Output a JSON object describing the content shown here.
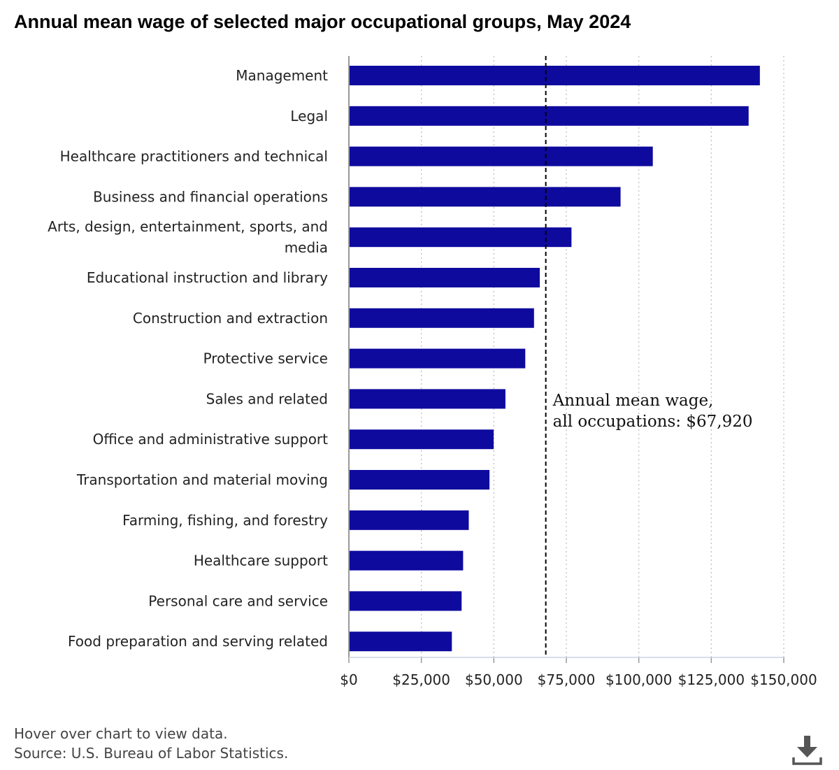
{
  "title": "Annual mean wage of selected major occupational groups, May 2024",
  "footer": {
    "hint": "Hover over chart to view data.",
    "source": "Source: U.S. Bureau of Labor Statistics."
  },
  "colors": {
    "bar": "#0f0a9e",
    "axis": "#999999",
    "grid": "#bbbbbb",
    "reference": "#000000"
  },
  "icons": {
    "download": "download-icon"
  },
  "chart_data": {
    "type": "bar",
    "orientation": "horizontal",
    "title": "Annual mean wage of selected major occupational groups, May 2024",
    "categories": [
      "Management",
      "Legal",
      "Healthcare practitioners and technical",
      "Business and financial operations",
      "Arts, design, entertainment, sports, and media",
      "Educational instruction and library",
      "Construction and extraction",
      "Protective service",
      "Sales and related",
      "Office and administrative support",
      "Transportation and material moving",
      "Farming, fishing, and forestry",
      "Healthcare support",
      "Personal care and service",
      "Food preparation and serving related"
    ],
    "category_lines": [
      [
        "Management"
      ],
      [
        "Legal"
      ],
      [
        "Healthcare practitioners and technical"
      ],
      [
        "Business and financial operations"
      ],
      [
        "Arts, design, entertainment, sports, and",
        "media"
      ],
      [
        "Educational instruction and library"
      ],
      [
        "Construction and extraction"
      ],
      [
        "Protective service"
      ],
      [
        "Sales and related"
      ],
      [
        "Office and administrative support"
      ],
      [
        "Transportation and material moving"
      ],
      [
        "Farming, fishing, and forestry"
      ],
      [
        "Healthcare support"
      ],
      [
        "Personal care and service"
      ],
      [
        "Food preparation and serving related"
      ]
    ],
    "values": [
      141760,
      137880,
      104830,
      93710,
      76780,
      65840,
      63860,
      60840,
      54000,
      49930,
      48500,
      41350,
      39400,
      38880,
      35520
    ],
    "xlim": [
      0,
      150000
    ],
    "xticks": [
      0,
      25000,
      50000,
      75000,
      100000,
      125000,
      150000
    ],
    "xtick_labels": [
      "$0",
      "$25,000",
      "$50,000",
      "$75,000",
      "$100,000",
      "$125,000",
      "$150,000"
    ],
    "grid": true,
    "reference_line": {
      "value": 67920,
      "label_lines": [
        "Annual mean wage,",
        "all occupations: $67,920"
      ]
    }
  }
}
